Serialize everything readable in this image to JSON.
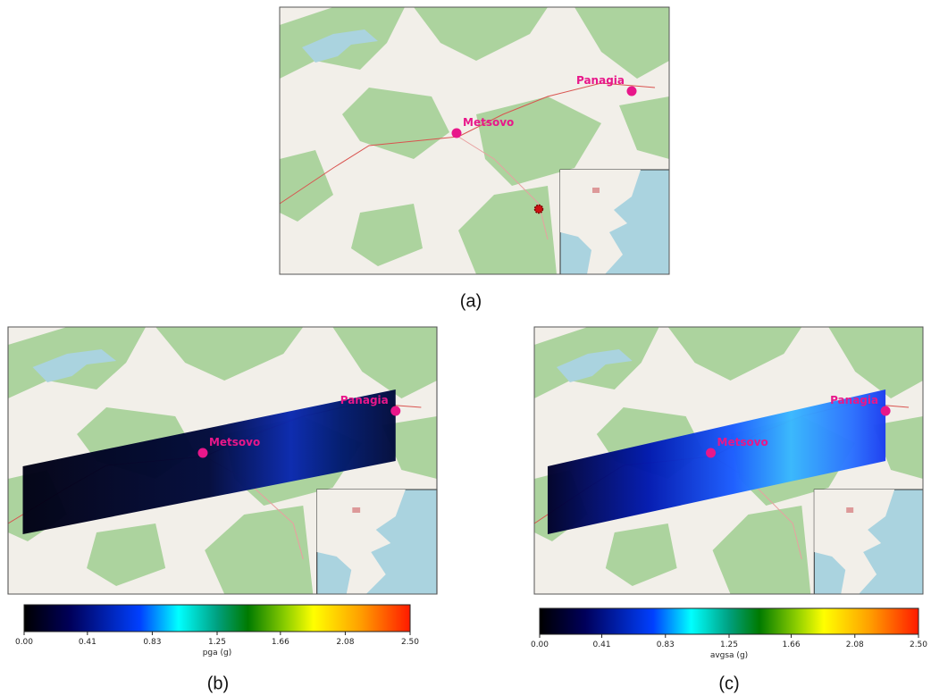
{
  "panels": [
    {
      "label": "(a)",
      "places": [
        {
          "name": "Metsovo"
        },
        {
          "name": "Panagia"
        }
      ]
    },
    {
      "label": "(b)",
      "places": [
        {
          "name": "Metsovo"
        },
        {
          "name": "Panagia"
        }
      ],
      "colorbar": {
        "label": "pga (g)",
        "range": [
          0,
          2.5
        ],
        "ticks": [
          {
            "value": 0,
            "label": "0.00"
          },
          0.41,
          0.83,
          1.25,
          1.66,
          2.08,
          {
            "value": 2.5,
            "label": "2.50"
          }
        ]
      }
    },
    {
      "label": "(c)",
      "places": [
        {
          "name": "Metsovo"
        },
        {
          "name": "Panagia"
        }
      ],
      "colorbar": {
        "label": "avgsa (g)",
        "range": [
          0,
          2.5
        ],
        "ticks": [
          {
            "value": 0,
            "label": "0.00"
          },
          0.41,
          0.83,
          1.25,
          1.66,
          2.08,
          {
            "value": 2.5,
            "label": "2.50"
          }
        ]
      }
    }
  ]
}
